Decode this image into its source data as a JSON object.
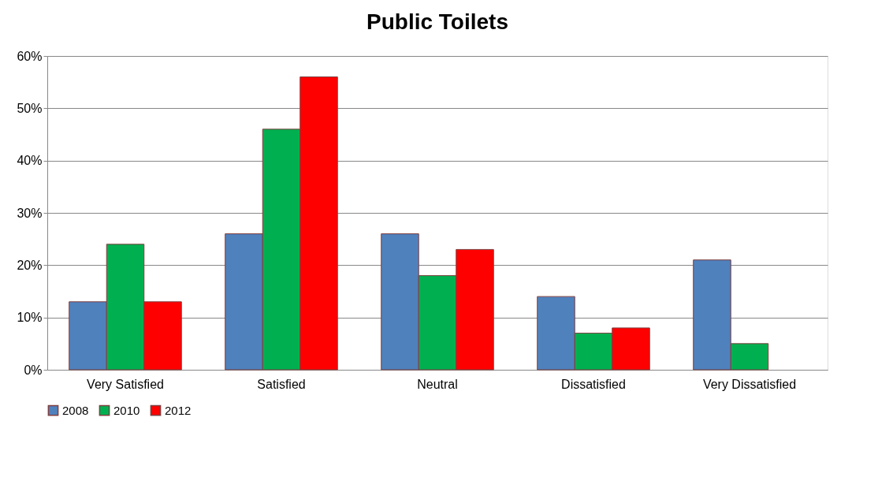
{
  "chart_data": {
    "type": "bar",
    "title": "Public Toilets",
    "categories": [
      "Very Satisfied",
      "Satisfied",
      "Neutral",
      "Dissatisfied",
      "Very Dissatisfied"
    ],
    "series": [
      {
        "name": "2008",
        "color": "#4f81bd",
        "values": [
          13,
          26,
          26,
          14,
          21
        ]
      },
      {
        "name": "2010",
        "color": "#00b050",
        "values": [
          24,
          46,
          18,
          7,
          5
        ]
      },
      {
        "name": "2012",
        "color": "#ff0000",
        "values": [
          13,
          56,
          23,
          8,
          null
        ]
      }
    ],
    "ylim": [
      0,
      60
    ],
    "yticks": [
      {
        "value": 0,
        "label": "0%"
      },
      {
        "value": 10,
        "label": "10%"
      },
      {
        "value": 20,
        "label": "20%"
      },
      {
        "value": 30,
        "label": "30%"
      },
      {
        "value": 40,
        "label": "40%"
      },
      {
        "value": 50,
        "label": "50%"
      },
      {
        "value": 60,
        "label": "60%"
      }
    ],
    "grid": "y",
    "legend": "bottom"
  }
}
